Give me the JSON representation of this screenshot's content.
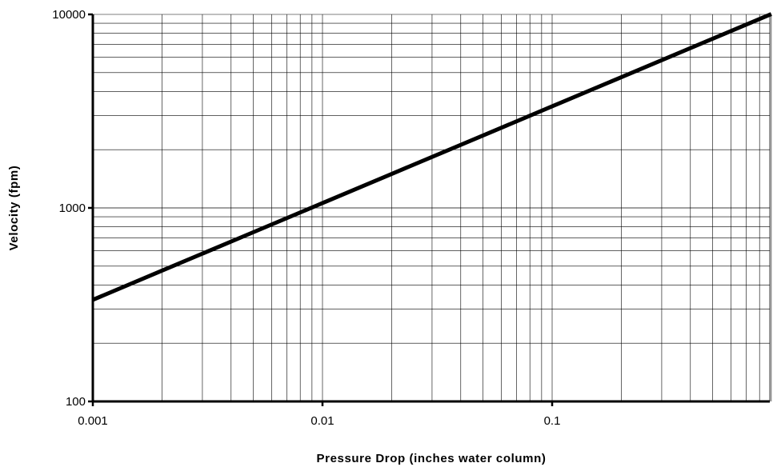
{
  "chart_data": {
    "type": "line",
    "title": "",
    "xlabel": "Pressure Drop (inches water column)",
    "ylabel": "Velocity (fpm)",
    "x_scale": "log",
    "y_scale": "log",
    "xlim": [
      0.001,
      0.9
    ],
    "ylim": [
      100,
      10000
    ],
    "x_ticks": [
      0.001,
      0.01,
      0.1
    ],
    "x_tick_labels": [
      "0.001",
      "0.01",
      "0.1"
    ],
    "y_ticks": [
      100,
      1000,
      10000
    ],
    "y_tick_labels": [
      "100",
      "1000",
      "10000"
    ],
    "grid": "major and minor (log)",
    "legend": "none",
    "series": [
      {
        "x": [
          0.001,
          0.002,
          0.005,
          0.01,
          0.02,
          0.05,
          0.1,
          0.2,
          0.5,
          0.9
        ],
        "y": [
          335,
          474,
          749,
          1059,
          1498,
          2368,
          3349,
          4736,
          7489,
          10047
        ],
        "color": "#000000"
      }
    ]
  }
}
